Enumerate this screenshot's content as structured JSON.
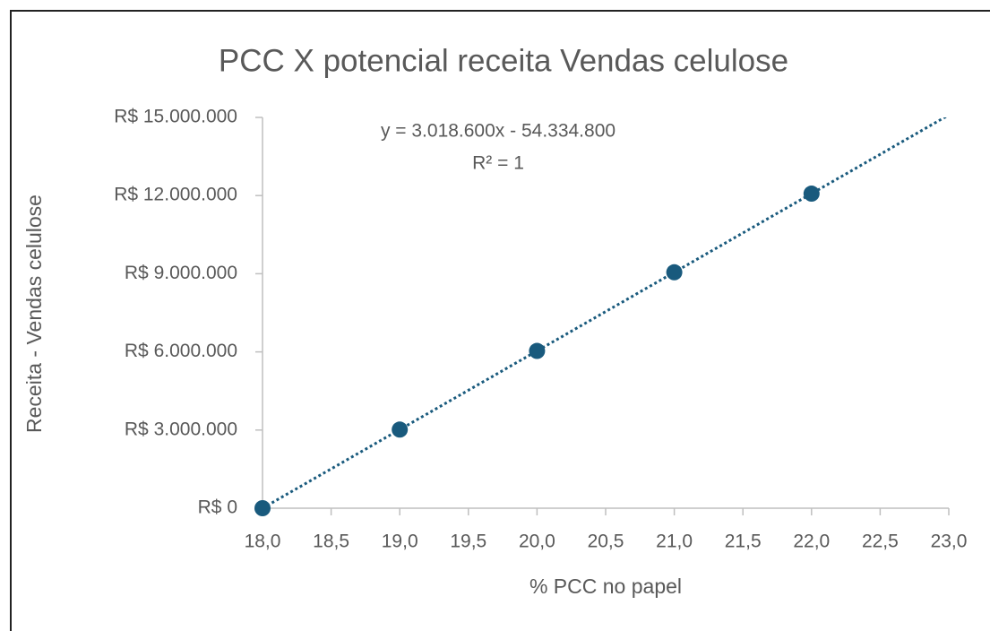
{
  "chart_data": {
    "type": "scatter",
    "title": "PCC X potencial receita Vendas celulose",
    "x_label": "% PCC no papel",
    "y_label": "Receita - Vendas celulose",
    "series": [
      {
        "name": "Receita",
        "color": "#195a7d",
        "x": [
          18,
          19,
          20,
          21,
          22
        ],
        "values": [
          0,
          3018600,
          6037200,
          9055800,
          12074400
        ]
      }
    ],
    "trendline": {
      "equation": "y = 3.018.600x - 54.334.800",
      "r2_label": "R² = 1",
      "slope": 3018600,
      "intercept": -54334800,
      "color": "#195a7d"
    },
    "xlim": [
      18,
      23
    ],
    "xticks": [
      {
        "value": 18,
        "label": "18,0"
      },
      {
        "value": 18.5,
        "label": "18,5"
      },
      {
        "value": 19,
        "label": "19,0"
      },
      {
        "value": 19.5,
        "label": "19,5"
      },
      {
        "value": 20,
        "label": "20,0"
      },
      {
        "value": 20.5,
        "label": "20,5"
      },
      {
        "value": 21,
        "label": "21,0"
      },
      {
        "value": 21.5,
        "label": "21,5"
      },
      {
        "value": 22,
        "label": "22,0"
      },
      {
        "value": 22.5,
        "label": "22,5"
      },
      {
        "value": 23,
        "label": "23,0"
      }
    ],
    "ylim": [
      0,
      15000000
    ],
    "yticks": [
      {
        "value": 0,
        "label": "R$ 0"
      },
      {
        "value": 3000000,
        "label": "R$ 3.000.000"
      },
      {
        "value": 6000000,
        "label": "R$ 6.000.000"
      },
      {
        "value": 9000000,
        "label": "R$ 9.000.000"
      },
      {
        "value": 12000000,
        "label": "R$ 12.000.000"
      },
      {
        "value": 15000000,
        "label": "R$ 15.000.000"
      }
    ],
    "grid": false
  }
}
